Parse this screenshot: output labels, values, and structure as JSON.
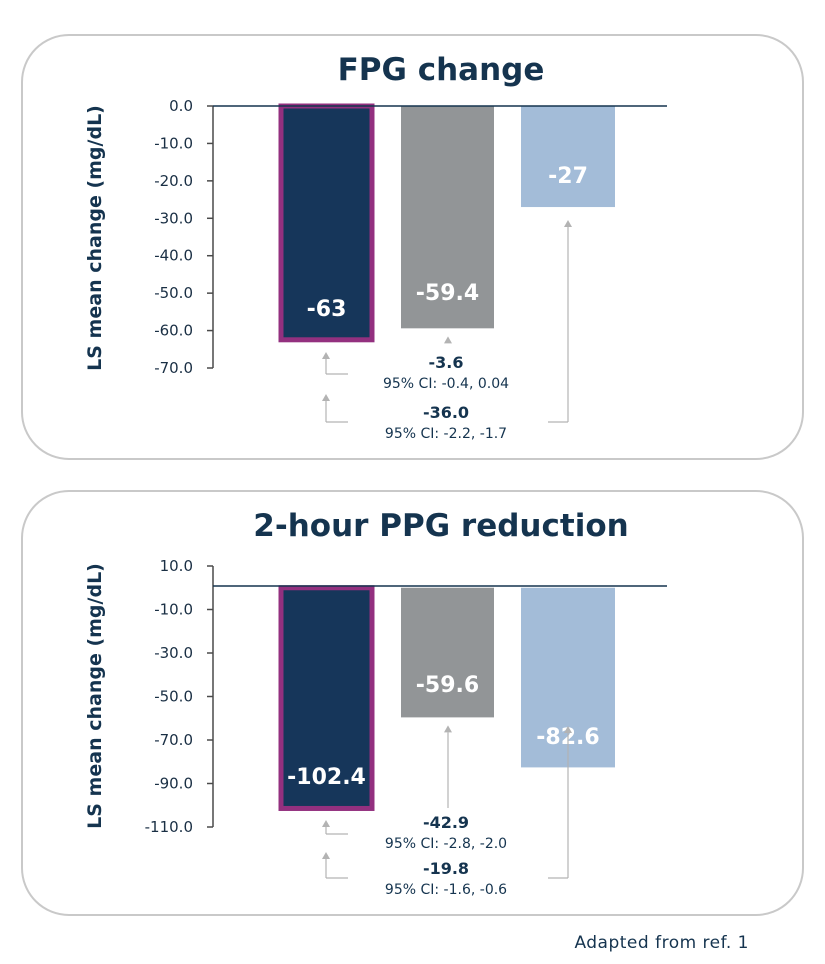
{
  "footnote": "Adapted from ref. 1",
  "colors": {
    "bar1": "#16365a",
    "bar1_border": "#93307f",
    "bar2": "#929597",
    "bar3": "#a3bcd8",
    "connector": "#b3b3b3",
    "text": "#15344f"
  },
  "chart_data": [
    {
      "type": "bar",
      "title": "FPG change",
      "ylabel": "LS mean change (mg/dL)",
      "ylim": [
        -70,
        0
      ],
      "yticks": [
        "0.0",
        "-10.0",
        "-20.0",
        "-30.0",
        "-40.0",
        "-50.0",
        "-60.0",
        "-70.0"
      ],
      "ytick_values": [
        0,
        -10,
        -20,
        -30,
        -40,
        -50,
        -60,
        -70
      ],
      "values": [
        -63,
        -59.4,
        -27
      ],
      "value_labels": [
        "-63",
        "-59.4",
        "-27"
      ],
      "comparisons": [
        {
          "from": 0,
          "to": 1,
          "difference": "-3.6",
          "ci": "95% CI: -0.4, 0.04"
        },
        {
          "from": 0,
          "to": 2,
          "difference": "-36.0",
          "ci": "95% CI: -2.2, -1.7"
        }
      ]
    },
    {
      "type": "bar",
      "title": "2-hour PPG reduction",
      "ylabel": "LS mean change (mg/dL)",
      "ylim": [
        -110,
        10
      ],
      "yticks": [
        "10.0",
        "-10.0",
        "-30.0",
        "-50.0",
        "-70.0",
        "-90.0",
        "-110.0"
      ],
      "ytick_values": [
        10,
        -10,
        -30,
        -50,
        -70,
        -90,
        -110
      ],
      "values": [
        -102.4,
        -59.6,
        -82.6
      ],
      "value_labels": [
        "-102.4",
        "-59.6",
        "-82.6"
      ],
      "comparisons": [
        {
          "from": 0,
          "to": 1,
          "difference": "-42.9",
          "ci": "95% CI: -2.8, -2.0"
        },
        {
          "from": 0,
          "to": 2,
          "difference": "-19.8",
          "ci": "95% CI: -1.6, -0.6"
        }
      ]
    }
  ]
}
